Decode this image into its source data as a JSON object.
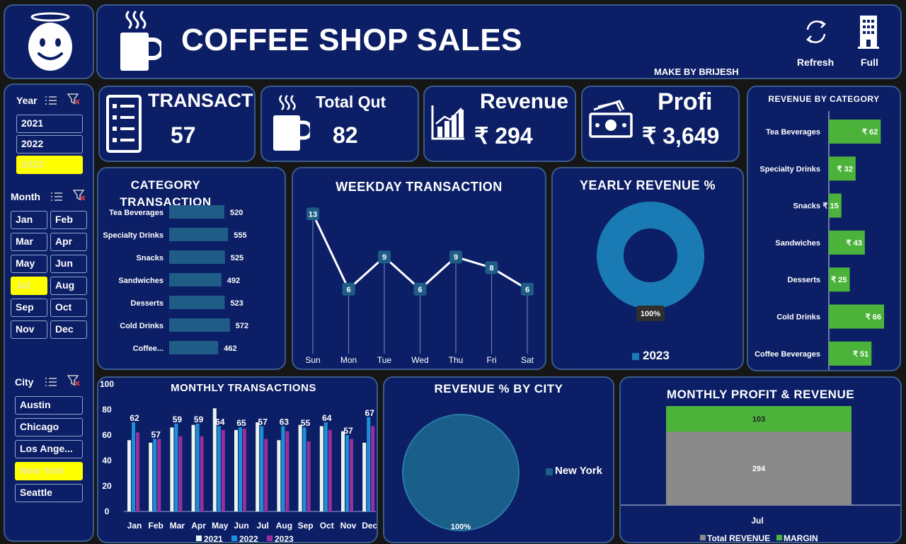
{
  "header": {
    "title": "COFFEE SHOP SALES",
    "maker": "MAKE BY BRIJESH",
    "refresh_label": "Refresh",
    "full_label": "Full"
  },
  "filters": {
    "year": {
      "title": "Year",
      "items": [
        "2021",
        "2022",
        "2023"
      ],
      "selected": "2023"
    },
    "month": {
      "title": "Month",
      "items": [
        "Jan",
        "Feb",
        "Mar",
        "Apr",
        "May",
        "Jun",
        "Jul",
        "Aug",
        "Sep",
        "Oct",
        "Nov",
        "Dec"
      ],
      "selected": "Jul"
    },
    "city": {
      "title": "City",
      "items": [
        "Austin",
        "Chicago",
        "Los Ange...",
        "New York",
        "Seattle"
      ],
      "selected": "New York"
    }
  },
  "kpis": {
    "transactions": {
      "label": "TRANSACTIO",
      "value": "57"
    },
    "quantity": {
      "label": "Total Qut",
      "value": "82"
    },
    "revenue": {
      "label": "Revenue",
      "value": "₹ 294"
    },
    "profit": {
      "label": "Profi",
      "value": "₹ 3,649"
    }
  },
  "colors": {
    "panel": "#0c1f66",
    "bar_green": "#4cb33a",
    "bar_teal": "#1f5c86",
    "y2021": "#e8f5f0",
    "y2022": "#1d8fd6",
    "y2023": "#9b2e9e",
    "grey": "#8a8a8a",
    "selected": "#ffff00"
  },
  "chart_data": [
    {
      "type": "bar",
      "title": "CATEGORY TRANSACTION",
      "orientation": "horizontal",
      "categories": [
        "Tea Beverages",
        "Specialty Drinks",
        "Snacks",
        "Sandwiches",
        "Desserts",
        "Cold Drinks",
        "Coffee..."
      ],
      "values": [
        520,
        555,
        525,
        492,
        523,
        572,
        462
      ]
    },
    {
      "type": "line",
      "title": "WEEKDAY TRANSACTION",
      "categories": [
        "Sun",
        "Mon",
        "Tue",
        "Wed",
        "Thu",
        "Fri",
        "Sat"
      ],
      "values": [
        13,
        6,
        9,
        6,
        9,
        8,
        6
      ]
    },
    {
      "type": "pie",
      "title": "YEARLY REVENUE %",
      "labels": [
        "2023"
      ],
      "values": [
        100
      ],
      "value_labels": [
        "100%"
      ],
      "legend": "bottom"
    },
    {
      "type": "bar",
      "title": "REVENUE BY CATEGORY",
      "orientation": "horizontal",
      "categories": [
        "Tea Beverages",
        "Specialty Drinks",
        "Snacks",
        "Sandwiches",
        "Desserts",
        "Cold Drinks",
        "Coffee Beverages"
      ],
      "values": [
        62,
        32,
        15,
        43,
        25,
        66,
        51
      ],
      "value_labels": [
        "₹ 62",
        "₹ 32",
        "₹ 15",
        "₹ 43",
        "₹ 25",
        "₹ 66",
        "₹ 51"
      ]
    },
    {
      "type": "bar",
      "title": "MONTHLY TRANSACTIONS",
      "categories": [
        "Jan",
        "Feb",
        "Mar",
        "Apr",
        "May",
        "Jun",
        "Jul",
        "Aug",
        "Sep",
        "Oct",
        "Nov",
        "Dec"
      ],
      "ylim": [
        0,
        100
      ],
      "yticks": [
        "0",
        "20",
        "40",
        "60",
        "80",
        "100"
      ],
      "legend": "bottom",
      "series": [
        {
          "name": "2021",
          "values": [
            56,
            54,
            66,
            68,
            81,
            64,
            70,
            56,
            68,
            67,
            63,
            54
          ]
        },
        {
          "name": "2022",
          "values": [
            70,
            57,
            69,
            69,
            67,
            66,
            67,
            67,
            66,
            70,
            60,
            74
          ]
        },
        {
          "name": "2023",
          "values": [
            62,
            57,
            59,
            59,
            64,
            65,
            57,
            63,
            55,
            64,
            57,
            67
          ]
        }
      ],
      "labels_2023": [
        "62",
        "57",
        "59",
        "59",
        "64",
        "65",
        "57",
        "63",
        "55",
        "64",
        "57",
        "67"
      ]
    },
    {
      "type": "pie",
      "title": "REVENUE % BY CITY",
      "labels": [
        "New York"
      ],
      "values": [
        100
      ],
      "value_labels": [
        "100%"
      ],
      "legend": "right"
    },
    {
      "type": "bar",
      "title": "MONTHLY PROFIT & REVENUE",
      "stacked": true,
      "categories": [
        "Jul"
      ],
      "series": [
        {
          "name": "Total REVENUE",
          "values": [
            294
          ]
        },
        {
          "name": "MARGIN",
          "values": [
            103
          ]
        }
      ]
    }
  ]
}
